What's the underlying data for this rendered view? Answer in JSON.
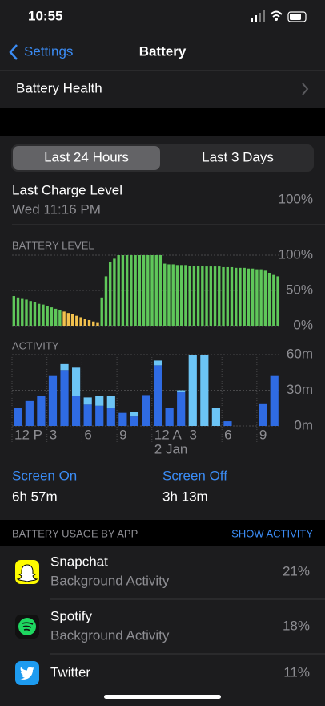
{
  "status_bar": {
    "time": "10:55"
  },
  "nav": {
    "back": "Settings",
    "title": "Battery"
  },
  "battery_health": "Battery Health",
  "segments": [
    "Last 24 Hours",
    "Last 3 Days"
  ],
  "last_charge": {
    "label": "Last Charge Level",
    "time": "Wed 11:16 PM",
    "value": "100%"
  },
  "battery_level_chart": {
    "type": "bar",
    "title": "BATTERY LEVEL",
    "values": [
      42,
      40,
      38,
      37,
      35,
      33,
      31,
      30,
      28,
      26,
      24,
      22,
      20,
      18,
      16,
      14,
      12,
      10,
      8,
      6,
      5,
      40,
      70,
      90,
      95,
      100,
      100,
      100,
      100,
      100,
      100,
      100,
      100,
      100,
      100,
      100,
      88,
      87,
      87,
      86,
      86,
      86,
      85,
      85,
      85,
      85,
      84,
      84,
      84,
      84,
      83,
      83,
      83,
      82,
      82,
      82,
      81,
      81,
      80,
      80,
      78,
      75,
      72,
      70
    ],
    "color": "#5fc75a",
    "low_color": "#f2c14e",
    "low_below": 20,
    "ylim": [
      0,
      100
    ],
    "yticks": [
      {
        "value": 0,
        "label": "0%"
      },
      {
        "value": 50,
        "label": "50%"
      },
      {
        "value": 100,
        "label": "100%"
      }
    ],
    "grid": true
  },
  "activity_chart": {
    "type": "stacked_bar",
    "title": "ACTIVITY",
    "categories": [
      "12 P",
      null,
      null,
      "3",
      null,
      null,
      "6",
      null,
      null,
      "9",
      null,
      null,
      "12 A",
      null,
      null,
      "3",
      null,
      null,
      "6",
      null,
      null,
      "9",
      null
    ],
    "annotation": "2 Jan",
    "series": [
      {
        "name": "Screen On",
        "color": "#2f6be3",
        "values": [
          15,
          21,
          25,
          42,
          47,
          25,
          18,
          17,
          15,
          11,
          8,
          26,
          51,
          15,
          29,
          0,
          0,
          0,
          4,
          0,
          0,
          19,
          42
        ]
      },
      {
        "name": "Screen Off",
        "color": "#6cc4f5",
        "values": [
          0,
          0,
          0,
          0,
          5,
          24,
          6,
          8,
          10,
          0,
          4,
          0,
          4,
          0,
          1,
          60,
          60,
          15,
          0,
          0,
          0,
          0,
          0
        ]
      }
    ],
    "ylim": [
      0,
      60
    ],
    "yticks": [
      {
        "value": 0,
        "label": "0m"
      },
      {
        "value": 30,
        "label": "30m"
      },
      {
        "value": 60,
        "label": "60m"
      }
    ],
    "grid": true
  },
  "screen_totals": [
    "6h 57m",
    "3h 13m"
  ],
  "usage": {
    "title": "BATTERY USAGE BY APP",
    "action": "SHOW ACTIVITY",
    "apps": [
      {
        "name": "Snapchat",
        "detail": "Background Activity",
        "percent": "21%"
      },
      {
        "name": "Spotify",
        "detail": "Background Activity",
        "percent": "18%"
      },
      {
        "name": "Twitter",
        "percent": "11%"
      }
    ]
  }
}
